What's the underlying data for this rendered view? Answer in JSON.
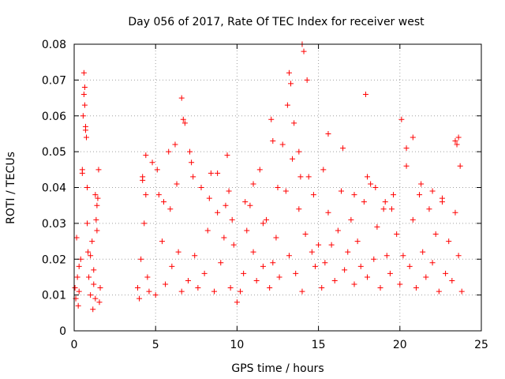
{
  "chart_data": {
    "type": "scatter",
    "title": "Day 056 of 2017, Rate Of TEC Index for receiver west",
    "xlabel": "GPS time / hours",
    "ylabel": "ROTI / TECUs",
    "xlim": [
      0,
      25
    ],
    "ylim": [
      0,
      0.08
    ],
    "xticks": [
      0,
      5,
      10,
      15,
      20,
      25
    ],
    "xtick_labels": [
      "0",
      "5",
      "10",
      "15",
      "20",
      "25"
    ],
    "yticks": [
      0,
      0.01,
      0.02,
      0.03,
      0.04,
      0.05,
      0.06,
      0.07,
      0.08
    ],
    "ytick_labels": [
      "0",
      "0.01",
      "0.02",
      "0.03",
      "0.04",
      "0.05",
      "0.06",
      "0.07",
      "0.08"
    ],
    "grid": true,
    "marker": "plus",
    "color": "#ff0000",
    "series": [
      {
        "name": "ROTI",
        "x": [
          0.05,
          0.1,
          0.2,
          0.3,
          0.4,
          0.5,
          0.55,
          0.6,
          0.65,
          0.7,
          0.8,
          0.9,
          1.0,
          1.1,
          1.2,
          1.3,
          1.4,
          1.5,
          1.6,
          0.6,
          0.65,
          0.7,
          0.75,
          0.8,
          1.3,
          1.35,
          1.4,
          0.15,
          0.3,
          0.5,
          1.0,
          1.2,
          1.45,
          1.55,
          0.25,
          0.85,
          1.15,
          3.9,
          4.0,
          4.1,
          4.2,
          4.3,
          4.4,
          4.5,
          4.6,
          4.8,
          5.0,
          5.2,
          5.4,
          5.6,
          5.8,
          6.0,
          6.2,
          6.4,
          6.6,
          6.8,
          7.0,
          7.2,
          7.4,
          7.6,
          7.8,
          8.0,
          8.2,
          8.4,
          8.6,
          8.8,
          9.0,
          9.2,
          9.4,
          9.6,
          9.8,
          10.0,
          4.2,
          4.4,
          5.1,
          5.5,
          5.9,
          6.3,
          6.6,
          6.7,
          7.1,
          7.3,
          8.3,
          8.8,
          9.3,
          9.5,
          9.7,
          10.2,
          10.4,
          10.6,
          10.8,
          11.0,
          11.2,
          11.4,
          11.6,
          11.8,
          12.0,
          12.2,
          12.4,
          12.6,
          12.8,
          13.0,
          13.2,
          13.4,
          13.6,
          13.8,
          14.0,
          14.2,
          14.4,
          14.6,
          14.8,
          15.0,
          10.5,
          11.0,
          11.6,
          12.1,
          12.2,
          12.5,
          13.1,
          13.2,
          13.3,
          13.5,
          13.8,
          13.9,
          14.0,
          14.1,
          14.3,
          14.7,
          15.2,
          15.4,
          15.6,
          15.8,
          16.0,
          16.2,
          16.4,
          16.6,
          16.8,
          17.0,
          17.2,
          17.4,
          17.6,
          17.8,
          18.0,
          18.2,
          18.4,
          18.6,
          18.8,
          19.0,
          19.2,
          19.4,
          19.6,
          19.8,
          15.3,
          15.6,
          16.5,
          17.2,
          17.9,
          18.0,
          18.5,
          19.1,
          19.5,
          20.0,
          20.2,
          20.4,
          20.6,
          20.8,
          21.0,
          21.2,
          21.4,
          21.6,
          21.8,
          22.0,
          22.2,
          22.4,
          22.6,
          22.8,
          23.0,
          23.2,
          23.4,
          23.6,
          23.8,
          20.1,
          20.4,
          20.8,
          21.3,
          22.0,
          22.6,
          23.4,
          23.5,
          23.6,
          23.7
        ],
        "y": [
          0.012,
          0.009,
          0.015,
          0.011,
          0.02,
          0.045,
          0.06,
          0.072,
          0.068,
          0.057,
          0.03,
          0.015,
          0.01,
          0.025,
          0.013,
          0.009,
          0.035,
          0.045,
          0.012,
          0.066,
          0.063,
          0.056,
          0.054,
          0.04,
          0.038,
          0.031,
          0.028,
          0.026,
          0.018,
          0.044,
          0.021,
          0.017,
          0.037,
          0.008,
          0.007,
          0.022,
          0.006,
          0.012,
          0.009,
          0.02,
          0.043,
          0.03,
          0.049,
          0.015,
          0.011,
          0.047,
          0.01,
          0.038,
          0.025,
          0.013,
          0.05,
          0.018,
          0.052,
          0.022,
          0.011,
          0.058,
          0.014,
          0.047,
          0.021,
          0.012,
          0.04,
          0.016,
          0.028,
          0.044,
          0.011,
          0.033,
          0.019,
          0.026,
          0.049,
          0.012,
          0.024,
          0.008,
          0.042,
          0.038,
          0.045,
          0.036,
          0.034,
          0.041,
          0.065,
          0.059,
          0.05,
          0.043,
          0.037,
          0.044,
          0.035,
          0.039,
          0.031,
          0.011,
          0.016,
          0.028,
          0.035,
          0.022,
          0.014,
          0.045,
          0.018,
          0.031,
          0.012,
          0.019,
          0.026,
          0.015,
          0.052,
          0.039,
          0.021,
          0.048,
          0.016,
          0.034,
          0.011,
          0.027,
          0.043,
          0.022,
          0.018,
          0.024,
          0.036,
          0.041,
          0.03,
          0.059,
          0.053,
          0.04,
          0.063,
          0.072,
          0.069,
          0.058,
          0.05,
          0.043,
          0.08,
          0.078,
          0.07,
          0.038,
          0.012,
          0.019,
          0.033,
          0.024,
          0.014,
          0.028,
          0.039,
          0.017,
          0.022,
          0.031,
          0.013,
          0.025,
          0.018,
          0.036,
          0.015,
          0.041,
          0.02,
          0.029,
          0.012,
          0.034,
          0.021,
          0.016,
          0.038,
          0.027,
          0.045,
          0.055,
          0.051,
          0.038,
          0.066,
          0.043,
          0.04,
          0.036,
          0.034,
          0.013,
          0.021,
          0.046,
          0.018,
          0.031,
          0.012,
          0.038,
          0.022,
          0.015,
          0.034,
          0.019,
          0.027,
          0.011,
          0.036,
          0.016,
          0.025,
          0.014,
          0.033,
          0.021,
          0.011,
          0.059,
          0.051,
          0.054,
          0.041,
          0.039,
          0.037,
          0.053,
          0.052,
          0.054,
          0.046
        ]
      }
    ]
  }
}
